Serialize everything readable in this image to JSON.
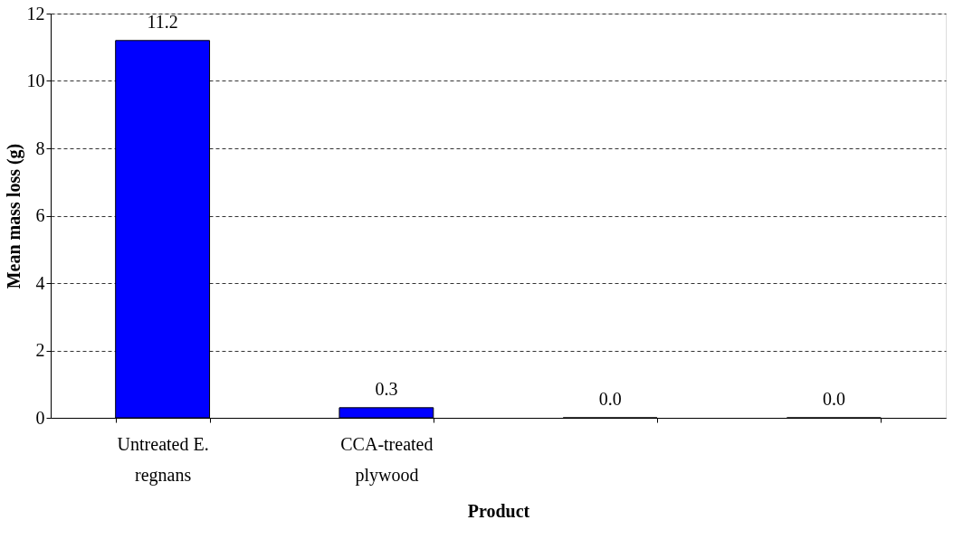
{
  "chart_data": {
    "type": "bar",
    "xlabel": "Product",
    "ylabel": "Mean mass loss (g)",
    "categories": [
      "Untreated E. regnans",
      "CCA-treated plywood",
      null,
      null
    ],
    "values": [
      11.2,
      0.3,
      0.0,
      0.0
    ],
    "color": "#0000ff",
    "ylim": [
      0,
      12
    ],
    "yticks": [
      0,
      2,
      4,
      6,
      8,
      10,
      12
    ],
    "grid": "y",
    "value_labels": [
      "11.2",
      "0.3",
      "0.0",
      "0.0"
    ]
  }
}
